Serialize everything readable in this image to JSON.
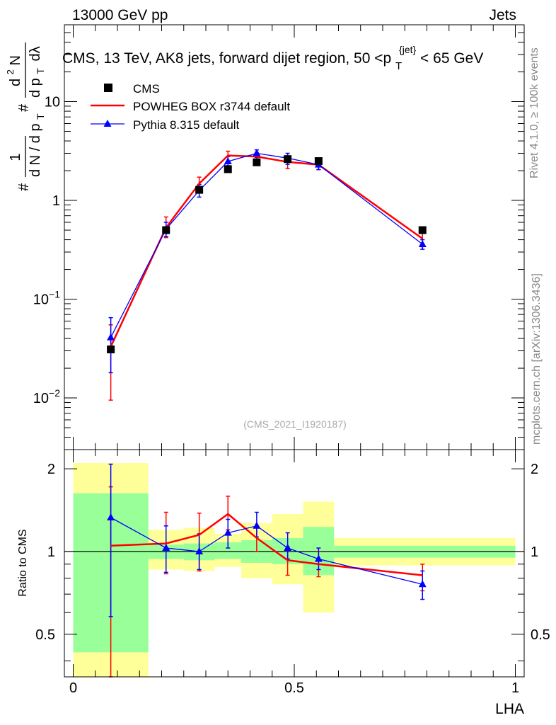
{
  "header": {
    "energy_label": "13000 GeV pp",
    "category_label": "Jets"
  },
  "side_text": {
    "rivet": "Rivet 4.1.0, ≥ 100k events",
    "mcplots": "mcplots.cern.ch [arXiv:1306.3436]"
  },
  "colors": {
    "data": "#000000",
    "powheg": "#ff0000",
    "pythia": "#0000ff",
    "band_inner": "#99ff99",
    "band_outer": "#ffff99"
  },
  "chart_data": [
    {
      "type": "scatter",
      "title": "CMS, 13 TeV, AK8 jets, forward dijet region, 50 <p_T^{jet}< 65 GeV",
      "title_main": "CMS, 13 TeV, AK8 jets, forward dijet region, 50 <p",
      "title_sub": "T",
      "title_sup": "{jet}",
      "title_end": "< 65 GeV",
      "ylabel_parts": [
        "#",
        "1",
        "d N / d p",
        "T",
        "#",
        "d",
        "2",
        "N",
        "d p",
        "T",
        "dλ"
      ],
      "yscale": "log",
      "ylim": [
        0.003,
        60
      ],
      "y_ticks": [
        {
          "value": 0.01,
          "base": "10",
          "exp": "−2"
        },
        {
          "value": 0.1,
          "base": "10",
          "exp": "−1"
        },
        {
          "value": 1,
          "base": "1",
          "exp": ""
        },
        {
          "value": 10,
          "base": "10",
          "exp": ""
        }
      ],
      "xlim": [
        -0.02,
        1.02
      ],
      "watermark": "(CMS_2021_I1920187)",
      "legend": [
        {
          "name": "CMS",
          "marker": "square"
        },
        {
          "name": "POWHEG BOX r3744 default",
          "marker": "line"
        },
        {
          "name": "Pythia 8.315 default",
          "marker": "triangle"
        }
      ],
      "series": [
        {
          "name": "CMS",
          "x": [
            0.085,
            0.21,
            0.285,
            0.35,
            0.415,
            0.485,
            0.555,
            0.79
          ],
          "y": [
            0.031,
            0.5,
            1.28,
            2.07,
            2.43,
            2.62,
            2.5,
            0.5
          ]
        },
        {
          "name": "POWHEG BOX r3744 default",
          "x": [
            0.085,
            0.21,
            0.285,
            0.35,
            0.415,
            0.485,
            0.555,
            0.79
          ],
          "y": [
            0.033,
            0.53,
            1.48,
            2.85,
            2.78,
            2.45,
            2.3,
            0.41
          ],
          "err_lo": [
            0.0095,
            0.42,
            1.28,
            2.45,
            2.42,
            2.1,
            2.05,
            0.34
          ],
          "err_hi": [
            0.055,
            0.68,
            1.72,
            3.15,
            3.05,
            2.8,
            2.55,
            0.47
          ]
        },
        {
          "name": "Pythia 8.315 default",
          "x": [
            0.085,
            0.21,
            0.285,
            0.35,
            0.415,
            0.485,
            0.555,
            0.79
          ],
          "y": [
            0.041,
            0.51,
            1.26,
            2.48,
            3.0,
            2.68,
            2.3,
            0.36
          ],
          "err_lo": [
            0.018,
            0.43,
            1.08,
            2.25,
            2.72,
            2.32,
            2.05,
            0.32
          ],
          "err_hi": [
            0.065,
            0.6,
            1.45,
            2.78,
            3.25,
            3.0,
            2.5,
            0.4
          ]
        }
      ]
    },
    {
      "type": "line",
      "ylabel": "Ratio to CMS",
      "xlabel": "LHA",
      "yscale": "log",
      "ylim": [
        0.35,
        2.35
      ],
      "y_ticks": [
        {
          "value": 0.5,
          "label": "0.5"
        },
        {
          "value": 1,
          "label": "1"
        },
        {
          "value": 2,
          "label": "2"
        }
      ],
      "xlim": [
        -0.02,
        1.02
      ],
      "x_ticks": [
        {
          "value": 0,
          "label": "0"
        },
        {
          "value": 0.5,
          "label": "0.5"
        },
        {
          "value": 1,
          "label": "1"
        }
      ],
      "reference_line": 1,
      "bands": [
        {
          "x0": 0.0,
          "x1": 0.17,
          "inner": [
            0.43,
            1.63
          ],
          "outer": [
            0.35,
            2.1
          ]
        },
        {
          "x0": 0.17,
          "x1": 0.25,
          "inner": [
            0.94,
            1.06
          ],
          "outer": [
            0.86,
            1.2
          ]
        },
        {
          "x0": 0.25,
          "x1": 0.32,
          "inner": [
            0.93,
            1.07
          ],
          "outer": [
            0.85,
            1.22
          ]
        },
        {
          "x0": 0.32,
          "x1": 0.38,
          "inner": [
            0.94,
            1.08
          ],
          "outer": [
            0.88,
            1.16
          ]
        },
        {
          "x0": 0.38,
          "x1": 0.45,
          "inner": [
            0.91,
            1.1
          ],
          "outer": [
            0.8,
            1.27
          ]
        },
        {
          "x0": 0.45,
          "x1": 0.52,
          "inner": [
            0.9,
            1.12
          ],
          "outer": [
            0.76,
            1.37
          ]
        },
        {
          "x0": 0.52,
          "x1": 0.59,
          "inner": [
            0.82,
            1.23
          ],
          "outer": [
            0.6,
            1.52
          ]
        },
        {
          "x0": 0.59,
          "x1": 1.0,
          "inner": [
            0.95,
            1.05
          ],
          "outer": [
            0.89,
            1.12
          ]
        }
      ],
      "series": [
        {
          "name": "POWHEG BOX r3744 default",
          "x": [
            0.085,
            0.21,
            0.285,
            0.35,
            0.415,
            0.485,
            0.555,
            0.79
          ],
          "y": [
            1.05,
            1.07,
            1.15,
            1.37,
            1.12,
            0.93,
            0.9,
            0.82
          ],
          "err_lo": [
            0.35,
            0.83,
            0.85,
            1.2,
            1.0,
            0.82,
            0.81,
            0.72
          ],
          "err_hi": [
            1.72,
            1.39,
            1.38,
            1.59,
            1.23,
            1.04,
            1.0,
            0.9
          ]
        },
        {
          "name": "Pythia 8.315 default",
          "x": [
            0.085,
            0.21,
            0.285,
            0.35,
            0.415,
            0.485,
            0.555,
            0.79
          ],
          "y": [
            1.33,
            1.03,
            1.0,
            1.17,
            1.24,
            1.03,
            0.94,
            0.76
          ],
          "err_lo": [
            0.58,
            0.84,
            0.86,
            1.03,
            1.13,
            0.94,
            0.86,
            0.67
          ],
          "err_hi": [
            2.08,
            1.24,
            1.16,
            1.31,
            1.39,
            1.17,
            1.03,
            0.85
          ]
        }
      ]
    }
  ]
}
